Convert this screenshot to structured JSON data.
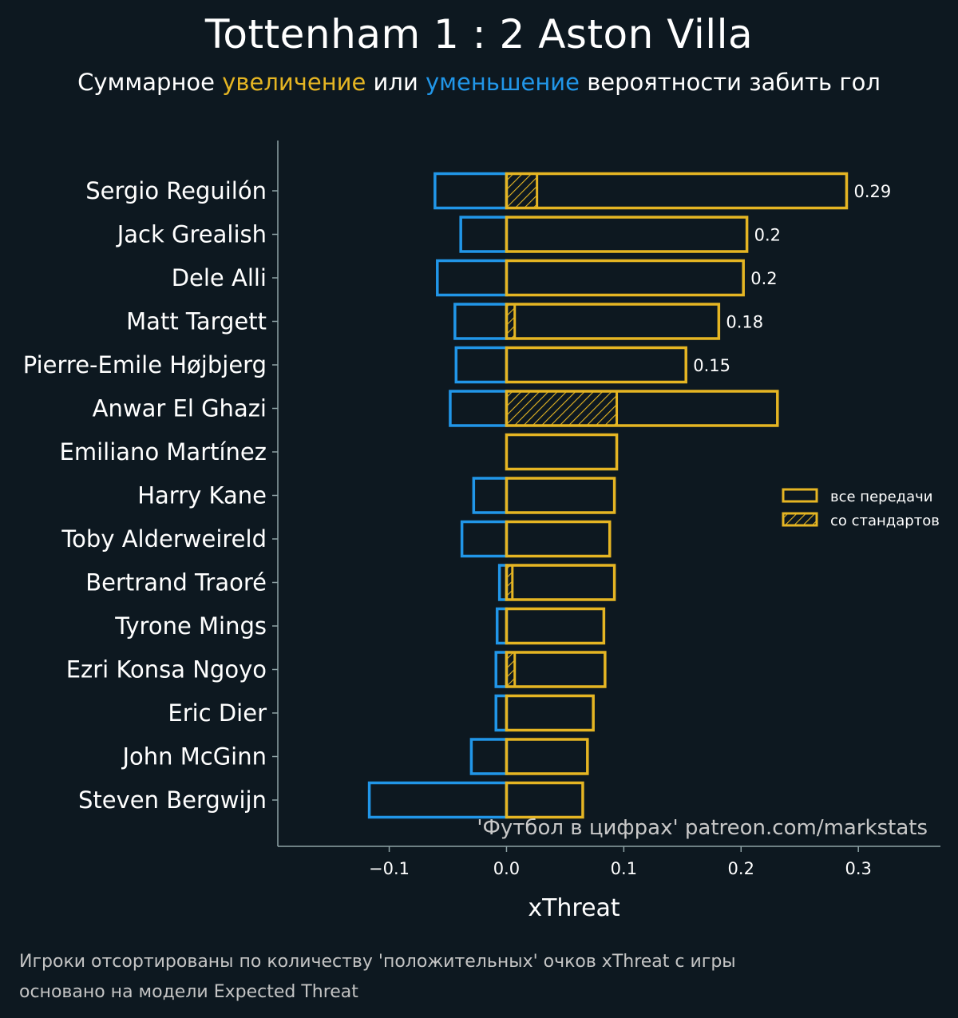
{
  "header": {
    "title": "Tottenham 1 : 2 Aston Villa",
    "subtitle_pre": "Суммарное ",
    "subtitle_increase": "увеличение",
    "subtitle_mid": " или ",
    "subtitle_decrease": "уменьшение",
    "subtitle_post": " вероятности забить гол"
  },
  "colors": {
    "background": "#0d1820",
    "positive": "#e5b523",
    "negative": "#2196e8",
    "axis": "#8fa3a6"
  },
  "chart_data": {
    "type": "bar",
    "orientation": "horizontal",
    "xlabel": "xThreat",
    "xlim": [
      -0.195,
      0.37
    ],
    "xticks": [
      -0.1,
      0.0,
      0.1,
      0.2,
      0.3
    ],
    "xtick_labels": [
      "−0.1",
      "0.0",
      "0.1",
      "0.2",
      "0.3"
    ],
    "categories": [
      "Sergio Reguilón",
      "Jack Grealish",
      "Dele Alli",
      "Matt Targett",
      "Pierre-Emile Højbjerg",
      "Anwar El Ghazi",
      "Emiliano Martínez",
      "Harry Kane",
      "Toby Alderweireld",
      "Bertrand Traoré",
      "Tyrone Mings",
      "Ezri Konsa Ngoyo",
      "Eric Dier",
      "John McGinn",
      "Steven Bergwijn"
    ],
    "series": [
      {
        "name": "все передачи",
        "values": [
          0.29,
          0.205,
          0.202,
          0.181,
          0.153,
          0.231,
          0.094,
          0.092,
          0.088,
          0.092,
          0.083,
          0.084,
          0.074,
          0.069,
          0.065
        ]
      },
      {
        "name": "со стандартов",
        "values": [
          0.026,
          0.0,
          0.0,
          0.007,
          0.0,
          0.094,
          0.0,
          0.0,
          0.0,
          0.005,
          0.0,
          0.007,
          0.0,
          0.0,
          0.0
        ]
      },
      {
        "name": "negative",
        "values": [
          -0.061,
          -0.039,
          -0.059,
          -0.044,
          -0.043,
          -0.048,
          0.0,
          -0.028,
          -0.038,
          -0.006,
          -0.008,
          -0.009,
          -0.009,
          -0.03,
          -0.117
        ]
      }
    ],
    "value_labels": [
      "0.29",
      "0.2",
      "0.2",
      "0.18",
      "0.15",
      "",
      "",
      "",
      "",
      "",
      "",
      "",
      "",
      "",
      ""
    ],
    "legend": {
      "position": "right",
      "entries": [
        "все передачи",
        "со стандартов"
      ]
    },
    "watermark": "'Футбол в цифрах' patreon.com/markstats"
  },
  "footnotes": {
    "line1": "Игроки отсортированы по количеству 'положительных' очков xThreat с игры",
    "line2": "основано на модели Expected Threat"
  }
}
